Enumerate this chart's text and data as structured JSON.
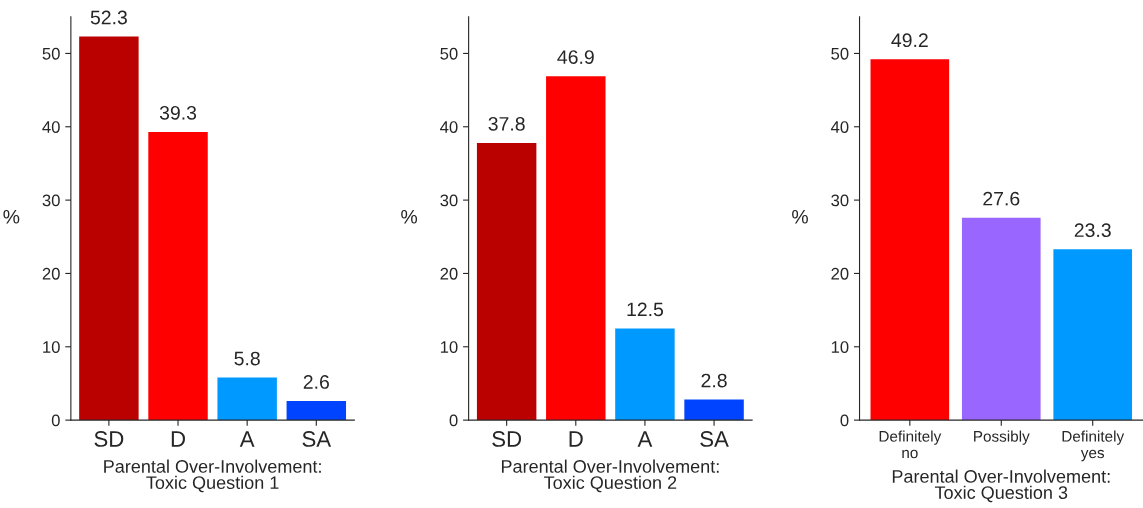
{
  "chart_data": [
    {
      "type": "bar",
      "categories": [
        "SD",
        "D",
        "A",
        "SA"
      ],
      "values": [
        52.3,
        39.3,
        5.8,
        2.6
      ],
      "colors": [
        "#bb0000",
        "#ff0000",
        "#0099ff",
        "#0044ff"
      ],
      "xlabel": "Parental Over-Involvement:\nToxic Question 1",
      "ylabel": "%",
      "ylim": [
        0,
        55
      ],
      "yticks": [
        0,
        10,
        20,
        30,
        40,
        50
      ],
      "data_labels": true,
      "grid": false,
      "legend": false
    },
    {
      "type": "bar",
      "categories": [
        "SD",
        "D",
        "A",
        "SA"
      ],
      "values": [
        37.8,
        46.9,
        12.5,
        2.8
      ],
      "colors": [
        "#bb0000",
        "#ff0000",
        "#0099ff",
        "#0044ff"
      ],
      "xlabel": "Parental Over-Involvement:\nToxic Question 2",
      "ylabel": "%",
      "ylim": [
        0,
        55
      ],
      "yticks": [
        0,
        10,
        20,
        30,
        40,
        50
      ],
      "data_labels": true,
      "grid": false,
      "legend": false
    },
    {
      "type": "bar",
      "categories": [
        "Definitely\nno",
        "Possibly",
        "Definitely\nyes"
      ],
      "values": [
        49.2,
        27.6,
        23.3
      ],
      "colors": [
        "#ff0000",
        "#9966ff",
        "#0099ff"
      ],
      "xlabel": "Parental Over-Involvement:\nToxic Question 3",
      "ylabel": "%",
      "ylim": [
        0,
        55
      ],
      "yticks": [
        0,
        10,
        20,
        30,
        40,
        50
      ],
      "data_labels": true,
      "grid": false,
      "legend": false
    }
  ]
}
